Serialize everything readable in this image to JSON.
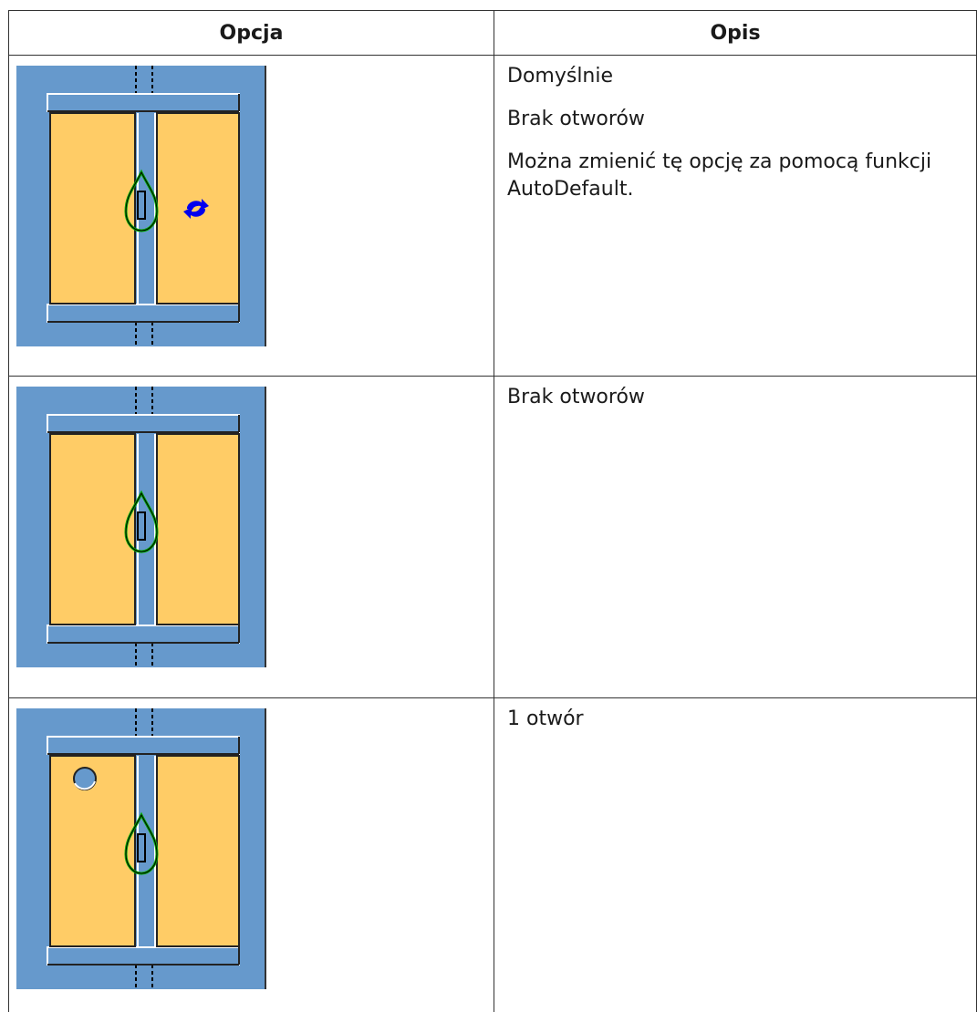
{
  "table": {
    "header": [
      "Opcja",
      "Opis"
    ],
    "rows": [
      {
        "description": [
          "Domyślnie",
          "Brak otworów",
          "Można zmienić tę opcję za pomocą funkcji AutoDefault."
        ]
      },
      {
        "description": [
          "Brak otworów"
        ]
      },
      {
        "description": [
          "1 otwór"
        ]
      }
    ]
  }
}
